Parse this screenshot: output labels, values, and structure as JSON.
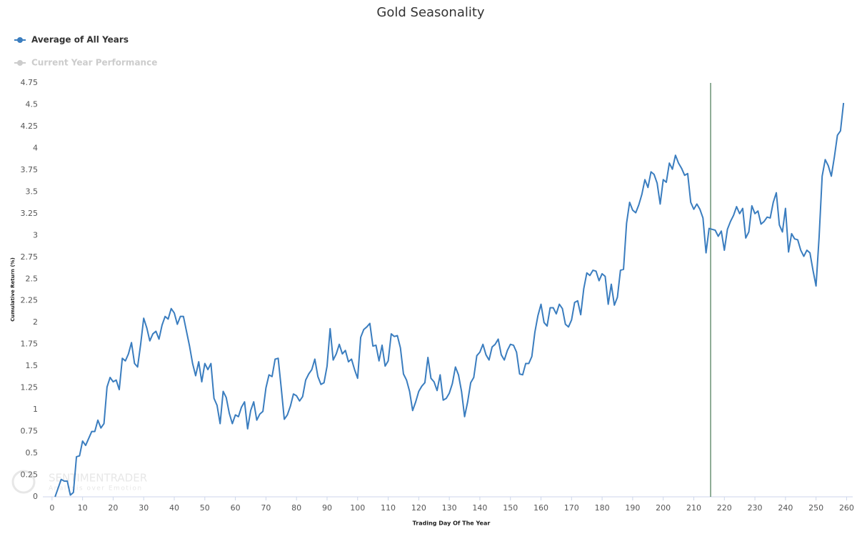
{
  "chart_data": {
    "type": "line",
    "title": "Gold Seasonality",
    "xlabel": "Trading Day Of The Year",
    "ylabel": "Cumulative Return (%)",
    "watermark": [
      "SENTIMENTRADER",
      "Analysis over Emotion"
    ],
    "series": [
      {
        "name": "Average of All Years",
        "color": "#3a7dbf",
        "x": [
          1,
          2,
          3,
          4,
          5,
          6,
          7,
          8,
          9,
          10,
          11,
          12,
          13,
          14,
          15,
          16,
          17,
          18,
          19,
          20,
          21,
          22,
          23,
          24,
          25,
          26,
          27,
          28,
          29,
          30,
          31,
          32,
          33,
          34,
          35,
          36,
          37,
          38,
          39,
          40,
          41,
          42,
          43,
          44,
          45,
          46,
          47,
          48,
          49,
          50,
          51,
          52,
          53,
          54,
          55,
          56,
          57,
          58,
          59,
          60,
          61,
          62,
          63,
          64,
          65,
          66,
          67,
          68,
          69,
          70,
          71,
          72,
          73,
          74,
          75,
          76,
          77,
          78,
          79,
          80,
          81,
          82,
          83,
          84,
          85,
          86,
          87,
          88,
          89,
          90,
          91,
          92,
          93,
          94,
          95,
          96,
          97,
          98,
          99,
          100,
          101,
          102,
          103,
          104,
          105,
          106,
          107,
          108,
          109,
          110,
          111,
          112,
          113,
          114,
          115,
          116,
          117,
          118,
          119,
          120,
          121,
          122,
          123,
          124,
          125,
          126,
          127,
          128,
          129,
          130,
          131,
          132,
          133,
          134,
          135,
          136,
          137,
          138,
          139,
          140,
          141,
          142,
          143,
          144,
          145,
          146,
          147,
          148,
          149,
          150,
          151,
          152,
          153,
          154,
          155,
          156,
          157,
          158,
          159,
          160,
          161,
          162,
          163,
          164,
          165,
          166,
          167,
          168,
          169,
          170,
          171,
          172,
          173,
          174,
          175,
          176,
          177,
          178,
          179,
          180,
          181,
          182,
          183,
          184,
          185,
          186,
          187,
          188,
          189,
          190,
          191,
          192,
          193,
          194,
          195,
          196,
          197,
          198,
          199,
          200,
          201,
          202,
          203,
          204,
          205,
          206,
          207,
          208,
          209,
          210,
          211,
          212,
          213,
          214,
          215,
          216,
          217,
          218,
          219,
          220,
          221,
          222,
          223,
          224,
          225,
          226,
          227,
          228,
          229,
          230,
          231,
          232,
          233,
          234,
          235,
          236,
          237,
          238,
          239,
          240,
          241,
          242,
          243,
          244,
          245,
          246,
          247,
          248,
          249,
          250,
          251,
          252,
          253,
          254,
          255,
          256,
          257,
          258,
          259
        ],
        "values": [
          0,
          0.1,
          0.2,
          0.18,
          0.18,
          0.02,
          0.05,
          0.46,
          0.47,
          0.64,
          0.59,
          0.67,
          0.75,
          0.75,
          0.88,
          0.79,
          0.84,
          1.26,
          1.37,
          1.32,
          1.34,
          1.23,
          1.59,
          1.56,
          1.64,
          1.77,
          1.53,
          1.49,
          1.75,
          2.05,
          1.94,
          1.79,
          1.87,
          1.9,
          1.81,
          1.97,
          2.07,
          2.04,
          2.16,
          2.11,
          1.98,
          2.07,
          2.07,
          1.9,
          1.73,
          1.53,
          1.39,
          1.55,
          1.32,
          1.53,
          1.46,
          1.53,
          1.13,
          1.05,
          0.84,
          1.21,
          1.14,
          0.96,
          0.84,
          0.94,
          0.92,
          1.03,
          1.09,
          0.78,
          0.99,
          1.09,
          0.88,
          0.95,
          0.98,
          1.25,
          1.4,
          1.38,
          1.58,
          1.59,
          1.25,
          0.89,
          0.94,
          1.04,
          1.18,
          1.16,
          1.1,
          1.15,
          1.34,
          1.41,
          1.46,
          1.58,
          1.38,
          1.29,
          1.31,
          1.5,
          1.93,
          1.57,
          1.64,
          1.75,
          1.64,
          1.68,
          1.55,
          1.58,
          1.46,
          1.36,
          1.83,
          1.92,
          1.95,
          1.99,
          1.73,
          1.74,
          1.56,
          1.74,
          1.5,
          1.56,
          1.87,
          1.84,
          1.85,
          1.71,
          1.41,
          1.34,
          1.21,
          0.99,
          1.09,
          1.21,
          1.27,
          1.31,
          1.6,
          1.36,
          1.32,
          1.22,
          1.4,
          1.11,
          1.13,
          1.19,
          1.3,
          1.49,
          1.4,
          1.21,
          0.92,
          1.09,
          1.31,
          1.37,
          1.62,
          1.66,
          1.75,
          1.63,
          1.57,
          1.72,
          1.75,
          1.81,
          1.63,
          1.57,
          1.68,
          1.75,
          1.74,
          1.66,
          1.41,
          1.4,
          1.53,
          1.53,
          1.61,
          1.89,
          2.08,
          2.21,
          2,
          1.96,
          2.17,
          2.17,
          2.1,
          2.21,
          2.16,
          1.98,
          1.95,
          2.03,
          2.23,
          2.25,
          2.09,
          2.39,
          2.57,
          2.54,
          2.6,
          2.59,
          2.48,
          2.56,
          2.53,
          2.21,
          2.44,
          2.2,
          2.29,
          2.6,
          2.61,
          3.14,
          3.38,
          3.29,
          3.26,
          3.35,
          3.47,
          3.64,
          3.55,
          3.73,
          3.7,
          3.6,
          3.36,
          3.64,
          3.61,
          3.83,
          3.76,
          3.92,
          3.83,
          3.77,
          3.69,
          3.71,
          3.38,
          3.3,
          3.36,
          3.3,
          3.2,
          2.8,
          3.08,
          3.07,
          3.06,
          2.99,
          3.05,
          2.83,
          3.07,
          3.16,
          3.23,
          3.33,
          3.25,
          3.31,
          2.97,
          3.04,
          3.34,
          3.25,
          3.28,
          3.13,
          3.16,
          3.21,
          3.2,
          3.38,
          3.49,
          3.12,
          3.04,
          3.31,
          2.81,
          3.02,
          2.96,
          2.95,
          2.83,
          2.76,
          2.83,
          2.8,
          2.6,
          2.42,
          2.98,
          3.68,
          3.87,
          3.8,
          3.68,
          3.9,
          4.15,
          4.2,
          4.52
        ]
      },
      {
        "name": "Current Year Performance",
        "color": "#cccccc",
        "visible": false
      }
    ],
    "marker_x": 215.5,
    "marker_color": "#1f5c2e",
    "xlim": [
      -3,
      262
    ],
    "xticks": [
      0,
      10,
      20,
      30,
      40,
      50,
      60,
      70,
      80,
      90,
      100,
      110,
      120,
      130,
      140,
      150,
      160,
      170,
      180,
      190,
      200,
      210,
      220,
      230,
      240,
      250,
      260
    ],
    "ylim": [
      0,
      4.75
    ],
    "yticks": [
      0,
      0.25,
      0.5,
      0.75,
      1,
      1.25,
      1.5,
      1.75,
      2,
      2.25,
      2.5,
      2.75,
      3,
      3.25,
      3.5,
      3.75,
      4,
      4.25,
      4.5,
      4.75
    ],
    "grid": false
  }
}
